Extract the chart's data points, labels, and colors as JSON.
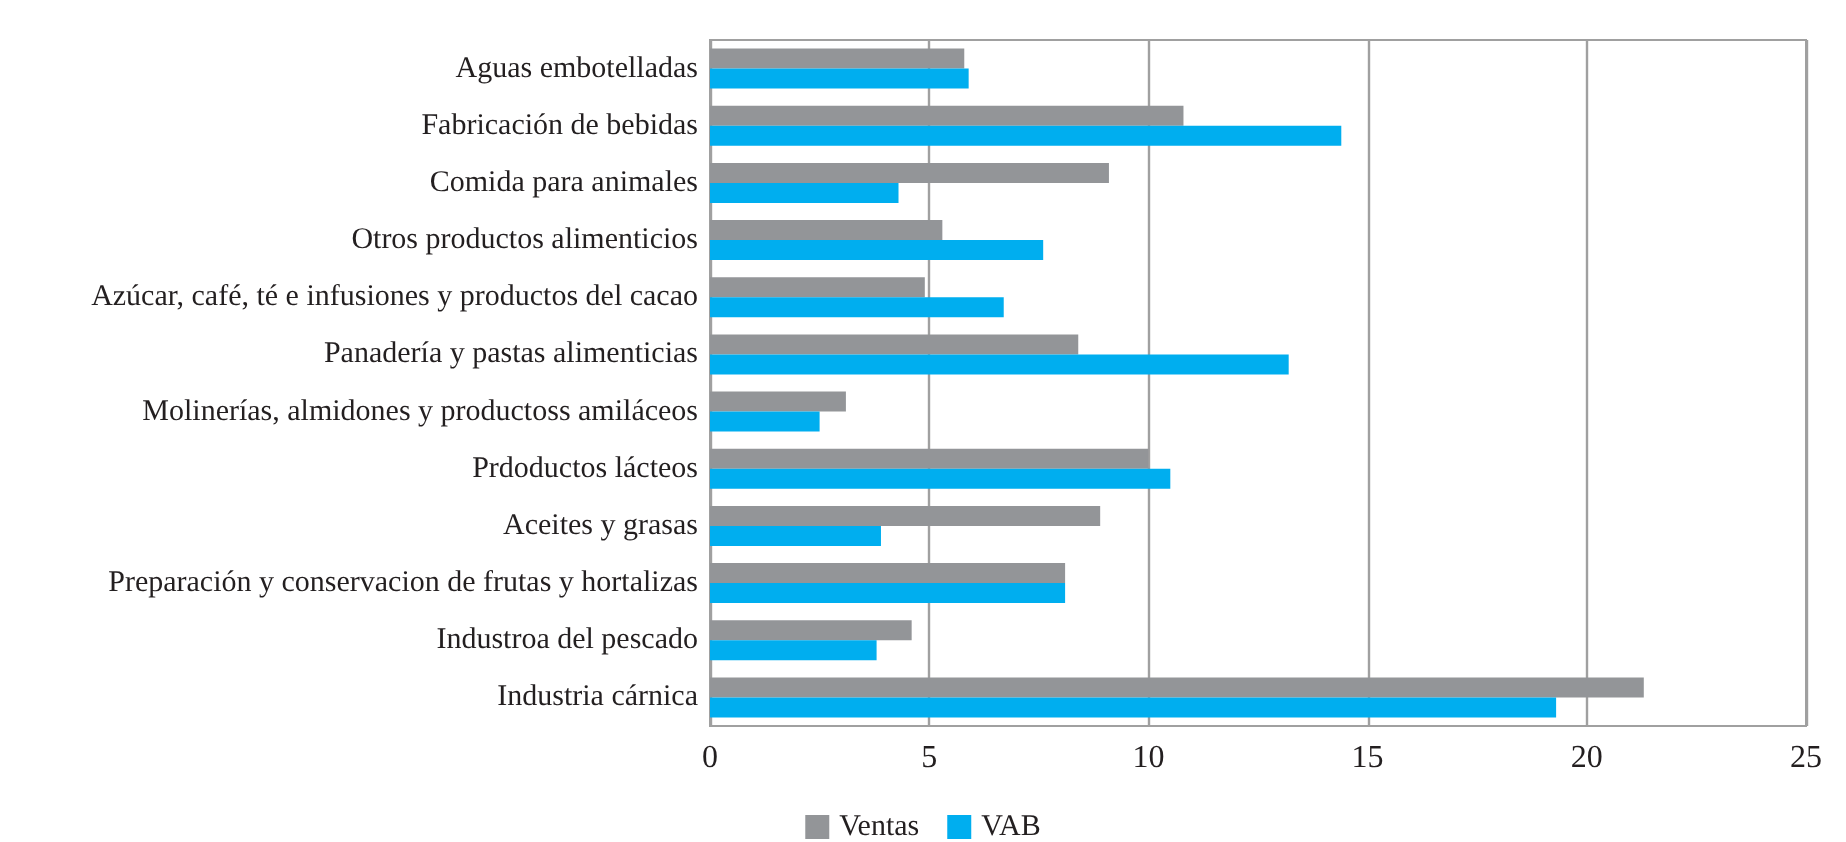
{
  "chart_data": {
    "type": "bar",
    "orientation": "horizontal",
    "categories": [
      "Aguas embotelladas",
      "Fabricación de bebidas",
      "Comida para animales",
      "Otros productos alimenticios",
      "Azúcar, café, té e infusiones y productos del cacao",
      "Panadería y pastas alimenticias",
      "Molinerías, almidones y productoss amiláceos",
      "Prdoductos lácteos",
      "Aceites y grasas",
      "Preparación y conservacion de frutas y hortalizas",
      "Industroa del pescado",
      "Industria cárnica"
    ],
    "series": [
      {
        "name": "Ventas",
        "color": "#939598",
        "values": [
          5.8,
          10.8,
          9.1,
          5.3,
          4.9,
          8.4,
          3.1,
          10.0,
          8.9,
          8.1,
          4.6,
          21.3
        ]
      },
      {
        "name": "VAB",
        "color": "#00aeef",
        "values": [
          5.9,
          14.4,
          4.3,
          7.6,
          6.7,
          13.2,
          2.5,
          10.5,
          3.9,
          8.1,
          3.8,
          19.3
        ]
      }
    ],
    "xlim": [
      0,
      25
    ],
    "xticks": [
      0,
      5,
      10,
      15,
      20,
      25
    ],
    "grid": "x",
    "legend": "bottom"
  }
}
